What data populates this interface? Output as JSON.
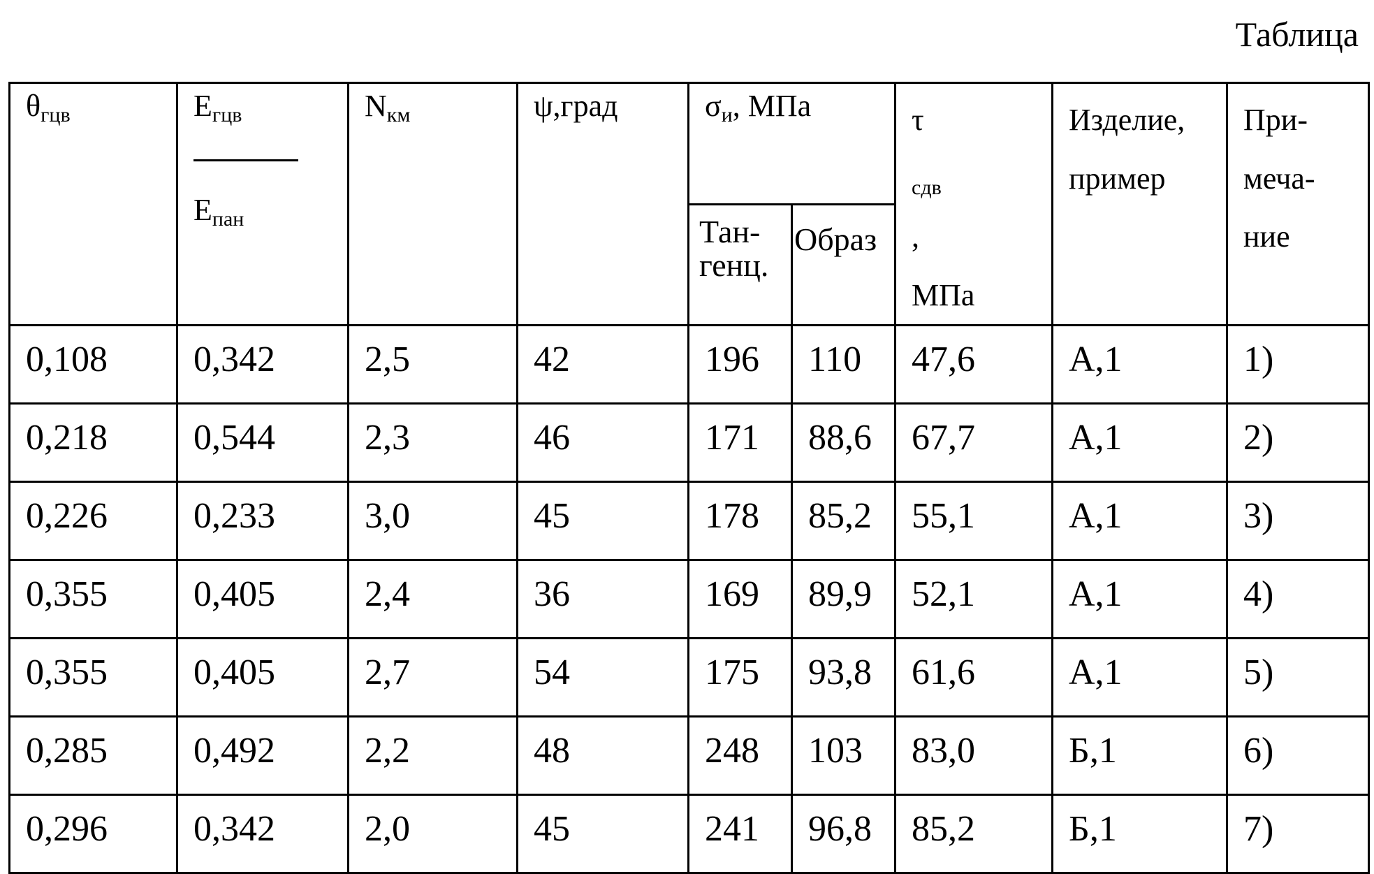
{
  "caption": "Таблица",
  "headers": {
    "theta": {
      "main": "θ",
      "sub": "гцв"
    },
    "e_ratio": {
      "num_main": "E",
      "num_sub": "гцв",
      "den_main": "E",
      "den_sub": "пан"
    },
    "n_km": {
      "main": "N",
      "sub": "км"
    },
    "psi": "ψ,град",
    "sigma": {
      "main": "σ",
      "sub": "и",
      "unit": ", МПа"
    },
    "sigma_tang": [
      "Тан-",
      "генц."
    ],
    "sigma_sample": "Образ",
    "tau": {
      "main": "τ",
      "sub": "сдв",
      "suffix": ",",
      "unit": "МПа"
    },
    "product": [
      "Изделие,",
      "пример"
    ],
    "note": [
      "При-",
      "меча-",
      "ние"
    ]
  },
  "rows": [
    [
      "0,108",
      "0,342",
      "2,5",
      "42",
      "196",
      "110",
      "47,6",
      "А,1",
      "1)"
    ],
    [
      "0,218",
      "0,544",
      "2,3",
      "46",
      "171",
      "88,6",
      "67,7",
      "А,1",
      "2)"
    ],
    [
      "0,226",
      "0,233",
      "3,0",
      "45",
      "178",
      "85,2",
      "55,1",
      "А,1",
      "3)"
    ],
    [
      "0,355",
      "0,405",
      "2,4",
      "36",
      "169",
      "89,9",
      "52,1",
      "А,1",
      "4)"
    ],
    [
      "0,355",
      "0,405",
      "2,7",
      "54",
      "175",
      "93,8",
      "61,6",
      "А,1",
      "5)"
    ],
    [
      "0,285",
      "0,492",
      "2,2",
      "48",
      "248",
      "103",
      "83,0",
      "Б,1",
      "6)"
    ],
    [
      "0,296",
      "0,342",
      "2,0",
      "45",
      "241",
      "96,8",
      "85,2",
      "Б,1",
      "7)"
    ]
  ]
}
